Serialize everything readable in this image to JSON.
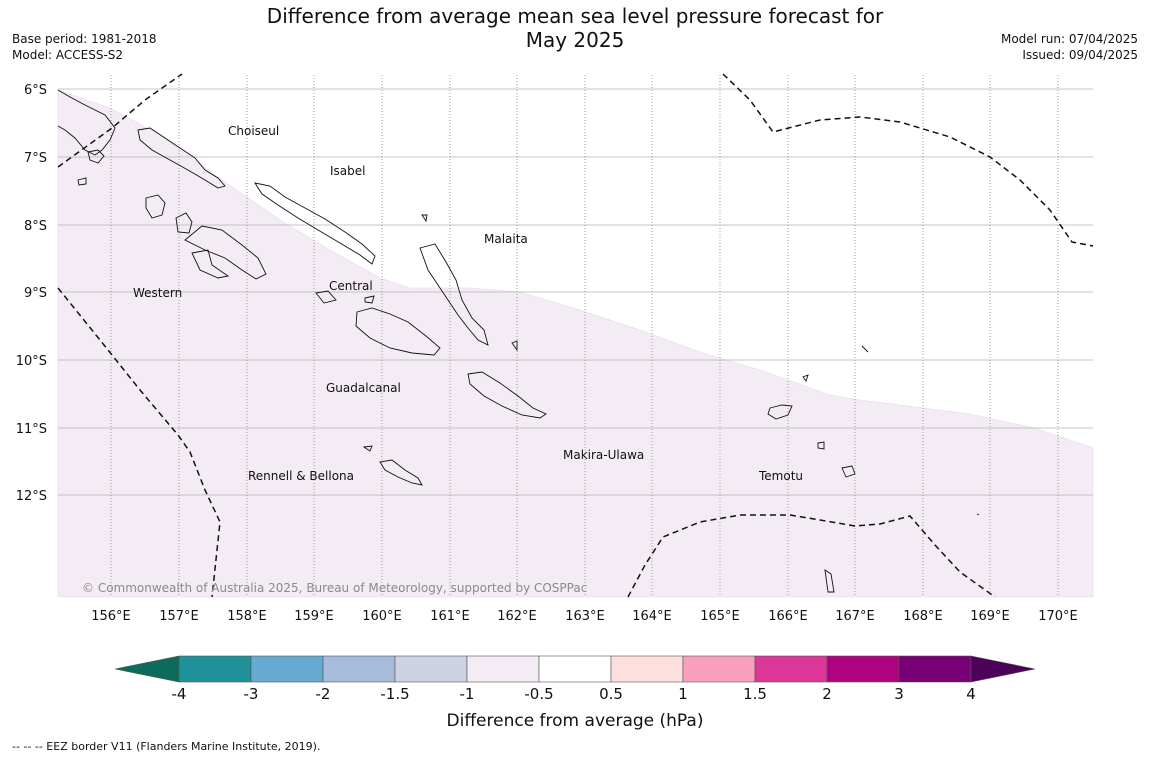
{
  "title": {
    "line1": "Difference from average mean sea level pressure forecast for",
    "line2": "May 2025"
  },
  "meta_left": {
    "base_period": "Base period: 1981-2018",
    "model": "Model: ACCESS-S2"
  },
  "meta_right": {
    "model_run": "Model run: 07/04/2025",
    "issued": "Issued: 09/04/2025"
  },
  "map": {
    "lat_labels": [
      "6°S",
      "7°S",
      "8°S",
      "9°S",
      "10°S",
      "11°S",
      "12°S"
    ],
    "lon_labels": [
      "156°E",
      "157°E",
      "158°E",
      "159°E",
      "160°E",
      "161°E",
      "162°E",
      "163°E",
      "164°E",
      "165°E",
      "166°E",
      "167°E",
      "168°E",
      "169°E",
      "170°E"
    ],
    "places": {
      "choiseul": "Choiseul",
      "isabel": "Isabel",
      "malaita": "Malaita",
      "western": "Western",
      "central": "Central",
      "guadalcanal": "Guadalcanal",
      "makira": "Makira-Ulawa",
      "rennell": "Rennell & Bellona",
      "temotu": "Temotu"
    },
    "copyright": "© Commonwealth of Australia 2025, Bureau of Meteorology, supported by COSPPac",
    "shaded_category": "-1 to -0.5",
    "colors": {
      "shaded_region": "#f3ecf4",
      "grid": "#b5b5b5"
    }
  },
  "colorbar": {
    "title": "Difference from average (hPa)",
    "ticks": [
      "-4",
      "-3",
      "-2",
      "-1.5",
      "-1",
      "-0.5",
      "0.5",
      "1",
      "1.5",
      "2",
      "3",
      "4"
    ],
    "colors": [
      "#0d6b5c",
      "#1f9299",
      "#67aad1",
      "#a7bbdb",
      "#cfd1e5",
      "#f3ecf4",
      "#ffffff",
      "#fedfdf",
      "#f8a0bd",
      "#dc3799",
      "#ae0280",
      "#780077",
      "#4b0258"
    ]
  },
  "legend_note": "--  --  -- EEZ border V11 (Flanders Marine Institute, 2019)."
}
